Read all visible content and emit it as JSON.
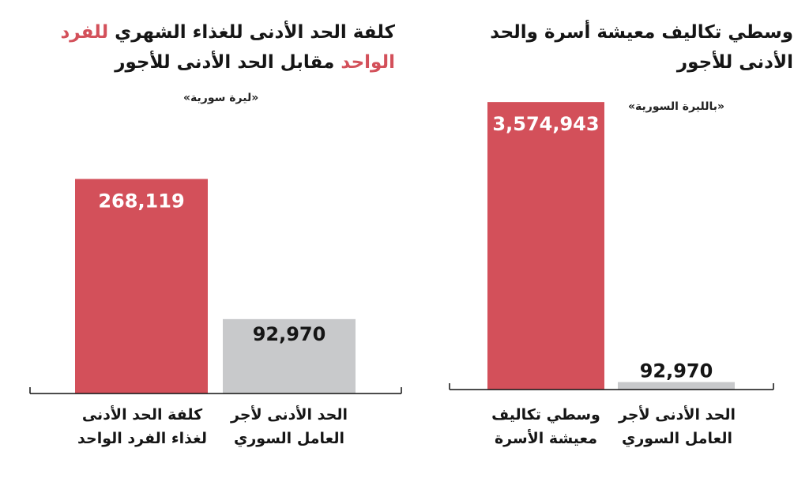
{
  "colors": {
    "accent": "#d3505a",
    "neutral": "#c8c9cb",
    "axis": "#111111",
    "label_light": "#ffffff",
    "label_dark": "#151515"
  },
  "chart_data": [
    {
      "type": "bar",
      "title_parts": [
        "كلفة الحد الأدنى للغذاء الشهري ",
        "للفرد الواحد",
        " مقابل الحد الأدنى للأجور"
      ],
      "unit_label": "«ليرة سورية»",
      "categories": [
        "كلفة الحد الأدنى لغذاء الفرد الواحد",
        "الحد الأدنى لأجر العامل السوري"
      ],
      "values": [
        268119,
        92970
      ],
      "value_labels": [
        "268,119",
        "92,970"
      ],
      "ylim": [
        0,
        395000
      ]
    },
    {
      "type": "bar",
      "title": "وسطي تكاليف معيشة أسرة والحد الأدنى للأجور",
      "unit_label": "«بالليرة السورية»",
      "categories": [
        "وسطي تكاليف معيشة الأسرة",
        "الحد الأدنى لأجر العامل السوري"
      ],
      "values": [
        3574943,
        92970
      ],
      "value_labels": [
        "3,574,943",
        "92,970"
      ],
      "ylim": [
        0,
        3930000
      ]
    }
  ]
}
